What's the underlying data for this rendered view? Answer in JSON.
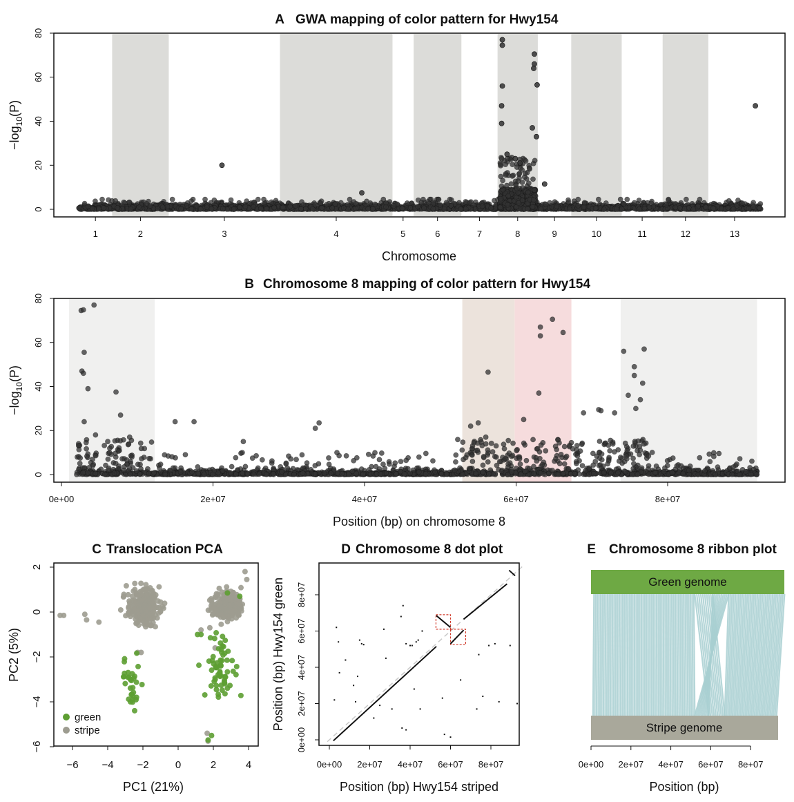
{
  "colors": {
    "band": "#dcdcd9",
    "band_light": "#f0f0ef",
    "band_tan": "#ece3dc",
    "band_pink": "#f6dcdd",
    "point": "#333333",
    "green": "#5d9e32",
    "stripe": "#9d9c90",
    "genome_green": "#6ea944",
    "genome_stripe": "#a9a89b",
    "ribbon": "#a8cfd1",
    "dot_box": "#d03a2a",
    "diag_guide": "#c9c9c9"
  },
  "chart_data": [
    {
      "id": "A",
      "type": "scatter",
      "letter": "A",
      "title": "GWA mapping of color pattern for Hwy154",
      "xlabel": "Chromosome",
      "ylabel": "−log10(P)",
      "ylabel_main": "−log",
      "ylabel_sub": "10",
      "ylabel_tail": "(P)",
      "ylim": [
        0,
        80
      ],
      "yticks": [
        "0",
        "20",
        "40",
        "60",
        "80"
      ],
      "chromosomes": [
        {
          "label": "1",
          "start": 0,
          "end": 0.049,
          "shaded": false
        },
        {
          "label": "2",
          "start": 0.049,
          "end": 0.132,
          "shaded": true
        },
        {
          "label": "3",
          "start": 0.132,
          "end": 0.295,
          "shaded": false
        },
        {
          "label": "4",
          "start": 0.295,
          "end": 0.46,
          "shaded": true
        },
        {
          "label": "5",
          "start": 0.46,
          "end": 0.491,
          "shaded": false
        },
        {
          "label": "6",
          "start": 0.491,
          "end": 0.561,
          "shaded": true
        },
        {
          "label": "7",
          "start": 0.561,
          "end": 0.614,
          "shaded": false
        },
        {
          "label": "8",
          "start": 0.614,
          "end": 0.673,
          "shaded": true
        },
        {
          "label": "9",
          "start": 0.673,
          "end": 0.722,
          "shaded": false
        },
        {
          "label": "10",
          "start": 0.722,
          "end": 0.796,
          "shaded": true
        },
        {
          "label": "11",
          "start": 0.796,
          "end": 0.856,
          "shaded": false
        },
        {
          "label": "12",
          "start": 0.856,
          "end": 0.923,
          "shaded": true
        },
        {
          "label": "13",
          "start": 0.923,
          "end": 1,
          "shaded": false
        }
      ],
      "notable_points": [
        {
          "chrom": "3",
          "pos": 0.21,
          "y": 20
        },
        {
          "chrom": "13",
          "pos": 0.992,
          "y": 47
        },
        {
          "chrom": "4",
          "pos": 0.415,
          "y": 7.5
        },
        {
          "chrom": "8",
          "pos": 0.621,
          "y": 77
        },
        {
          "chrom": "8",
          "pos": 0.621,
          "y": 74.5
        },
        {
          "chrom": "8",
          "pos": 0.621,
          "y": 56
        },
        {
          "chrom": "8",
          "pos": 0.62,
          "y": 47
        },
        {
          "chrom": "8",
          "pos": 0.62,
          "y": 39
        },
        {
          "chrom": "8",
          "pos": 0.668,
          "y": 70.5
        },
        {
          "chrom": "8",
          "pos": 0.668,
          "y": 66
        },
        {
          "chrom": "8",
          "pos": 0.667,
          "y": 64
        },
        {
          "chrom": "8",
          "pos": 0.672,
          "y": 56.5
        },
        {
          "chrom": "8",
          "pos": 0.665,
          "y": 37
        },
        {
          "chrom": "8",
          "pos": 0.671,
          "y": 33
        },
        {
          "chrom": "8",
          "pos": 0.628,
          "y": 25
        },
        {
          "chrom": "8",
          "pos": 0.64,
          "y": 23
        },
        {
          "chrom": "8",
          "pos": 0.647,
          "y": 21
        },
        {
          "chrom": "9",
          "pos": 0.683,
          "y": 11.5
        }
      ]
    },
    {
      "id": "B",
      "type": "scatter",
      "letter": "B",
      "title": "Chromosome 8 mapping of color pattern for Hwy154",
      "xlabel": "Position (bp) on chromosome 8",
      "ylabel_main": "−log",
      "ylabel_sub": "10",
      "ylabel_tail": "(P)",
      "xlim": [
        0,
        95000000
      ],
      "ylim": [
        0,
        80
      ],
      "xticks": [
        {
          "value": 0,
          "label": "0e+00"
        },
        {
          "value": 20000000,
          "label": "2e+07"
        },
        {
          "value": 40000000,
          "label": "4e+07"
        },
        {
          "value": 60000000,
          "label": "6e+07"
        },
        {
          "value": 80000000,
          "label": "8e+07"
        }
      ],
      "yticks": [
        "0",
        "20",
        "40",
        "60",
        "80"
      ],
      "regions": [
        {
          "start": 1000000,
          "end": 12300000,
          "color": "band_light"
        },
        {
          "start": 52900000,
          "end": 59800000,
          "color": "band_tan"
        },
        {
          "start": 59800000,
          "end": 67300000,
          "color": "band_pink"
        },
        {
          "start": 73800000,
          "end": 91800000,
          "color": "band_light"
        }
      ],
      "data_end": 91800000,
      "notable_points": [
        {
          "x": 2600000,
          "y": 74.5
        },
        {
          "x": 2900000,
          "y": 74.8
        },
        {
          "x": 4300000,
          "y": 77
        },
        {
          "x": 3000000,
          "y": 55.5
        },
        {
          "x": 2700000,
          "y": 47
        },
        {
          "x": 2900000,
          "y": 46
        },
        {
          "x": 3500000,
          "y": 39
        },
        {
          "x": 7200000,
          "y": 37.5
        },
        {
          "x": 7800000,
          "y": 27
        },
        {
          "x": 3000000,
          "y": 24
        },
        {
          "x": 4500000,
          "y": 18
        },
        {
          "x": 9000000,
          "y": 17
        },
        {
          "x": 15000000,
          "y": 24
        },
        {
          "x": 17500000,
          "y": 24
        },
        {
          "x": 34000000,
          "y": 23.5
        },
        {
          "x": 33500000,
          "y": 21
        },
        {
          "x": 24000000,
          "y": 15
        },
        {
          "x": 56300000,
          "y": 46.5
        },
        {
          "x": 55000000,
          "y": 23.5
        },
        {
          "x": 54000000,
          "y": 22
        },
        {
          "x": 56000000,
          "y": 17
        },
        {
          "x": 63200000,
          "y": 67
        },
        {
          "x": 63200000,
          "y": 63
        },
        {
          "x": 64800000,
          "y": 70.5
        },
        {
          "x": 66200000,
          "y": 64.5
        },
        {
          "x": 63000000,
          "y": 37
        },
        {
          "x": 61000000,
          "y": 25
        },
        {
          "x": 74200000,
          "y": 56
        },
        {
          "x": 76900000,
          "y": 57
        },
        {
          "x": 75600000,
          "y": 49
        },
        {
          "x": 75600000,
          "y": 45
        },
        {
          "x": 76700000,
          "y": 41.5
        },
        {
          "x": 74800000,
          "y": 36
        },
        {
          "x": 76400000,
          "y": 34
        },
        {
          "x": 70900000,
          "y": 29.5
        },
        {
          "x": 73000000,
          "y": 28
        },
        {
          "x": 68900000,
          "y": 28
        },
        {
          "x": 71200000,
          "y": 29
        },
        {
          "x": 75800000,
          "y": 30
        },
        {
          "x": 80700000,
          "y": 7.5
        }
      ]
    },
    {
      "id": "C",
      "type": "scatter",
      "letter": "C",
      "title": "Translocation PCA",
      "xlabel": "PC1 (21%)",
      "ylabel": "PC2 (5%)",
      "xlim": [
        -7,
        4.3
      ],
      "ylim": [
        -6,
        2.2
      ],
      "xticks": [
        "−6",
        "−4",
        "−2",
        "0",
        "2",
        "4"
      ],
      "xtick_values": [
        -6,
        -4,
        -2,
        0,
        2,
        4
      ],
      "yticks": [
        "2",
        "0",
        "−2",
        "−4",
        "−6"
      ],
      "ytick_values": [
        2,
        0,
        -2,
        -4,
        -6
      ],
      "legend": {
        "position": "bottom-left",
        "items": [
          {
            "label": "green",
            "color": "green"
          },
          {
            "label": "stripe",
            "color": "stripe"
          }
        ]
      },
      "series": [
        {
          "name": "stripe",
          "clusters": [
            {
              "cx": -2.0,
              "cy": 0.25,
              "sx": 0.45,
              "sy": 0.4,
              "n": 240
            },
            {
              "cx": 2.8,
              "cy": 0.3,
              "sx": 0.4,
              "sy": 0.33,
              "n": 200
            }
          ],
          "outliers": [
            [
              -6.7,
              -0.15
            ],
            [
              -6.5,
              -0.15
            ],
            [
              -5.3,
              -0.1
            ],
            [
              -5.2,
              -0.35
            ],
            [
              -4.5,
              -0.45
            ],
            [
              -2.3,
              -1.8
            ],
            [
              -2.1,
              -1.8
            ],
            [
              1.3,
              -0.8
            ],
            [
              1.8,
              -0.7
            ],
            [
              3.8,
              1.8
            ],
            [
              3.9,
              1.45
            ],
            [
              1.65,
              -5.4
            ],
            [
              1.7,
              -5.75
            ],
            [
              2.1,
              -1.6
            ]
          ]
        },
        {
          "name": "green",
          "clusters": [
            {
              "cx": -2.6,
              "cy": -3.1,
              "sx": 0.3,
              "sy": 0.6,
              "n": 32
            },
            {
              "cx": 2.5,
              "cy": -2.5,
              "sx": 0.45,
              "sy": 0.7,
              "n": 62
            }
          ],
          "outliers": [
            [
              3.5,
              0.7
            ],
            [
              2.8,
              0.85
            ],
            [
              1.3,
              -1.0
            ],
            [
              1.7,
              -5.7
            ],
            [
              1.9,
              -5.5
            ],
            [
              1.1,
              -1.0
            ]
          ]
        }
      ]
    },
    {
      "id": "D",
      "type": "scatter",
      "letter": "D",
      "title": "Chromosome 8 dot plot",
      "xlabel": "Position (bp) Hwy154 striped",
      "ylabel": "Position (bp) Hwy154 green",
      "xlim": [
        -3000000,
        97000000
      ],
      "ylim": [
        -3000000,
        97000000
      ],
      "xticks": [
        {
          "value": 0,
          "label": "0e+00"
        },
        {
          "value": 20000000,
          "label": "2e+07"
        },
        {
          "value": 40000000,
          "label": "4e+07"
        },
        {
          "value": 60000000,
          "label": "6e+07"
        },
        {
          "value": 80000000,
          "label": "8e+07"
        }
      ],
      "yticks": [
        {
          "value": 0,
          "label": "0e+00"
        },
        {
          "value": 20000000,
          "label": "2e+07"
        },
        {
          "value": 40000000,
          "label": "4e+07"
        },
        {
          "value": 60000000,
          "label": "6e+07"
        },
        {
          "value": 80000000,
          "label": "8e+07"
        }
      ],
      "segments": [
        {
          "x1": 2000000,
          "y1": -500000,
          "x2": 53000000,
          "y2": 51500000
        },
        {
          "x1": 53000000,
          "y1": 68500000,
          "x2": 60000000,
          "y2": 62000000
        },
        {
          "x1": 60000000,
          "y1": 53000000,
          "x2": 66500000,
          "y2": 60500000
        },
        {
          "x1": 66500000,
          "y1": 66500000,
          "x2": 88000000,
          "y2": 86000000
        },
        {
          "x1": 89000000,
          "y1": 93500000,
          "x2": 92000000,
          "y2": 90500000
        }
      ],
      "boxes": [
        {
          "x1": 52800000,
          "y1": 61000000,
          "x2": 60000000,
          "y2": 69000000
        },
        {
          "x1": 60000000,
          "y1": 52500000,
          "x2": 67500000,
          "y2": 61000000
        }
      ],
      "scatter_points": [
        [
          3500000,
          62000000
        ],
        [
          4500000,
          54000000
        ],
        [
          15000000,
          55000000
        ],
        [
          16000000,
          53000000
        ],
        [
          17000000,
          52500000
        ],
        [
          27000000,
          61000000
        ],
        [
          36500000,
          74000000
        ],
        [
          35500000,
          68000000
        ],
        [
          38000000,
          53000000
        ],
        [
          40000000,
          52000000
        ],
        [
          43000000,
          54000000
        ],
        [
          44000000,
          55000000
        ],
        [
          46000000,
          60000000
        ],
        [
          41000000,
          52000000
        ],
        [
          79000000,
          52000000
        ],
        [
          82000000,
          53000000
        ],
        [
          89500000,
          52000000
        ],
        [
          74000000,
          47000000
        ],
        [
          8000000,
          44000000
        ],
        [
          5000000,
          37000000
        ],
        [
          12000000,
          30000000
        ],
        [
          13000000,
          21000000
        ],
        [
          31000000,
          17000000
        ],
        [
          36000000,
          6500000
        ],
        [
          38000000,
          5500000
        ],
        [
          45000000,
          17000000
        ],
        [
          56000000,
          23000000
        ],
        [
          57000000,
          3000000
        ],
        [
          60000000,
          1500000
        ],
        [
          76000000,
          24000000
        ],
        [
          73000000,
          17000000
        ],
        [
          84000000,
          21000000
        ],
        [
          93000000,
          20000000
        ],
        [
          2500000,
          22000000
        ],
        [
          14000000,
          35000000
        ],
        [
          22000000,
          12000000
        ],
        [
          25000000,
          19000000
        ],
        [
          28000000,
          45000000
        ],
        [
          42000000,
          28000000
        ],
        [
          65000000,
          33000000
        ]
      ]
    },
    {
      "id": "E",
      "type": "other",
      "letter": "E",
      "title": "Chromosome 8 ribbon plot",
      "xlabel": "Position (bp)",
      "xlim": [
        0,
        97000000
      ],
      "xticks": [
        {
          "value": 0,
          "label": "0e+00"
        },
        {
          "value": 20000000,
          "label": "2e+07"
        },
        {
          "value": 40000000,
          "label": "4e+07"
        },
        {
          "value": 60000000,
          "label": "6e+07"
        },
        {
          "value": 80000000,
          "label": "8e+07"
        }
      ],
      "top_genome": {
        "label": "Green genome",
        "end": 97000000
      },
      "bottom_genome": {
        "label": "Stripe genome",
        "end": 93500000
      },
      "blocks": [
        {
          "s1": 1000000,
          "s2": 52000000,
          "g1": 1500000,
          "g2": 51500000,
          "n": 60
        },
        {
          "s1": 52000000,
          "s2": 59000000,
          "g1": 61000000,
          "g2": 69000000,
          "n": 10,
          "inverted": true
        },
        {
          "s1": 59000000,
          "s2": 67000000,
          "g1": 52000000,
          "g2": 61000000,
          "n": 10
        },
        {
          "s1": 67000000,
          "s2": 93000000,
          "g1": 69000000,
          "g2": 97000000,
          "n": 34
        }
      ]
    }
  ]
}
